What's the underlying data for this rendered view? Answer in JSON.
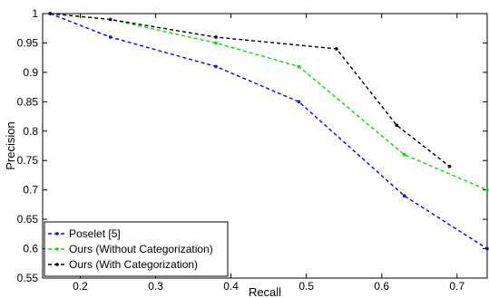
{
  "chart_data": {
    "type": "line",
    "xlabel": "Recall",
    "ylabel": "Precision",
    "xlim": [
      0.15,
      0.74
    ],
    "ylim": [
      0.55,
      1.0
    ],
    "xticks": [
      "0.2",
      "0.3",
      "0.4",
      "0.5",
      "0.6",
      "0.7"
    ],
    "yticks": [
      "0.55",
      "0.6",
      "0.65",
      "0.7",
      "0.75",
      "0.8",
      "0.85",
      "0.9",
      "0.95",
      "1"
    ],
    "grid": false,
    "legend_position": "bottom-left",
    "series": [
      {
        "name": "Poselet [5]",
        "color": "#0000ff",
        "x": [
          0.16,
          0.24,
          0.38,
          0.49,
          0.63,
          0.74
        ],
        "y": [
          1.0,
          0.96,
          0.91,
          0.85,
          0.69,
          0.6
        ]
      },
      {
        "name": "Ours (Without Categorization)",
        "color": "#00dd00",
        "x": [
          0.16,
          0.24,
          0.38,
          0.49,
          0.63,
          0.74
        ],
        "y": [
          1.0,
          0.99,
          0.95,
          0.91,
          0.76,
          0.7
        ]
      },
      {
        "name": "Ours (With Categorization)",
        "color": "#000000",
        "x": [
          0.16,
          0.24,
          0.38,
          0.54,
          0.62,
          0.69
        ],
        "y": [
          1.0,
          0.99,
          0.96,
          0.94,
          0.81,
          0.74
        ]
      }
    ]
  }
}
